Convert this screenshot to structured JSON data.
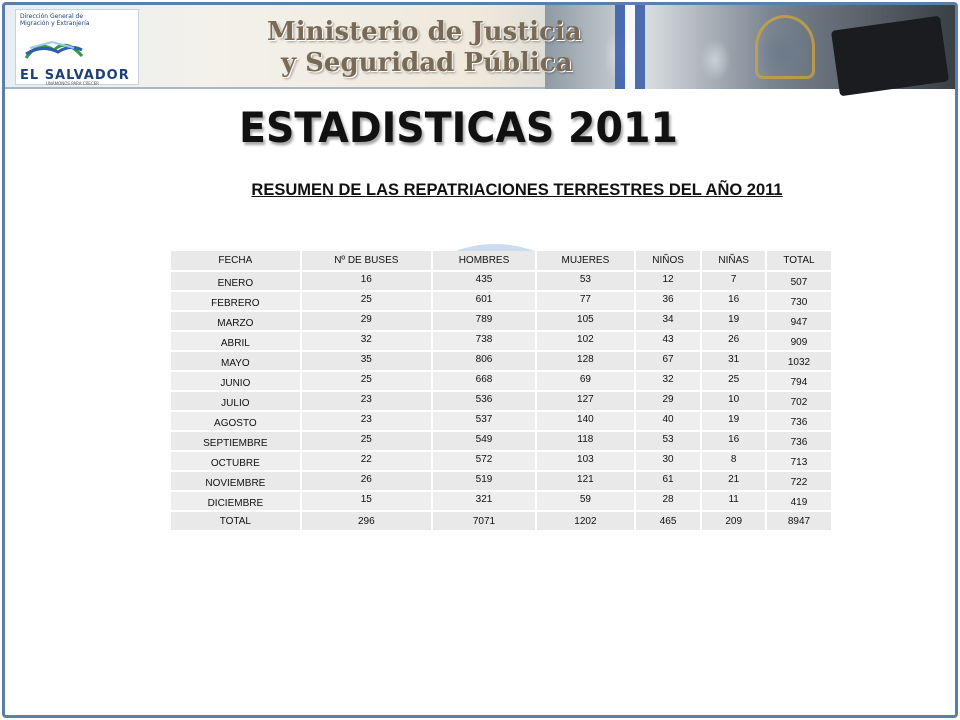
{
  "header": {
    "logo": {
      "org_lines": "Dirección General de\nMigración y Extranjería",
      "country": "EL SALVADOR",
      "motto": "UNÁMONOS PARA CRECER"
    },
    "ministry_line1": "Ministerio de Justicia",
    "ministry_line2": "y Seguridad Pública"
  },
  "page_title": "ESTADISTICAS 2011",
  "subtitle": "RESUMEN DE LAS REPATRIACIONES TERRESTRES DEL AÑO 2011",
  "table": {
    "columns": [
      "FECHA",
      "Nº DE BUSES",
      "HOMBRES",
      "MUJERES",
      "NIÑOS",
      "NIÑAS",
      "TOTAL"
    ],
    "rows": [
      [
        "ENERO",
        "16",
        "435",
        "53",
        "12",
        "7",
        "507"
      ],
      [
        "FEBRERO",
        "25",
        "601",
        "77",
        "36",
        "16",
        "730"
      ],
      [
        "MARZO",
        "29",
        "789",
        "105",
        "34",
        "19",
        "947"
      ],
      [
        "ABRIL",
        "32",
        "738",
        "102",
        "43",
        "26",
        "909"
      ],
      [
        "MAYO",
        "35",
        "806",
        "128",
        "67",
        "31",
        "1032"
      ],
      [
        "JUNIO",
        "25",
        "668",
        "69",
        "32",
        "25",
        "794"
      ],
      [
        "JULIO",
        "23",
        "536",
        "127",
        "29",
        "10",
        "702"
      ],
      [
        "AGOSTO",
        "23",
        "537",
        "140",
        "40",
        "19",
        "736"
      ],
      [
        "SEPTIEMBRE",
        "25",
        "549",
        "118",
        "53",
        "16",
        "736"
      ],
      [
        "OCTUBRE",
        "22",
        "572",
        "103",
        "30",
        "8",
        "713"
      ],
      [
        "NOVIEMBRE",
        "26",
        "519",
        "121",
        "61",
        "21",
        "722"
      ],
      [
        "DICIEMBRE",
        "15",
        "321",
        "59",
        "28",
        "11",
        "419"
      ]
    ],
    "total_row": [
      "TOTAL",
      "296",
      "7071",
      "1202",
      "465",
      "209",
      "8947"
    ]
  },
  "colors": {
    "frame_border": "#5b7fa8",
    "title_text": "#111111",
    "ministry_text": "#7a6a55",
    "table_cell": "#eeeeee"
  }
}
